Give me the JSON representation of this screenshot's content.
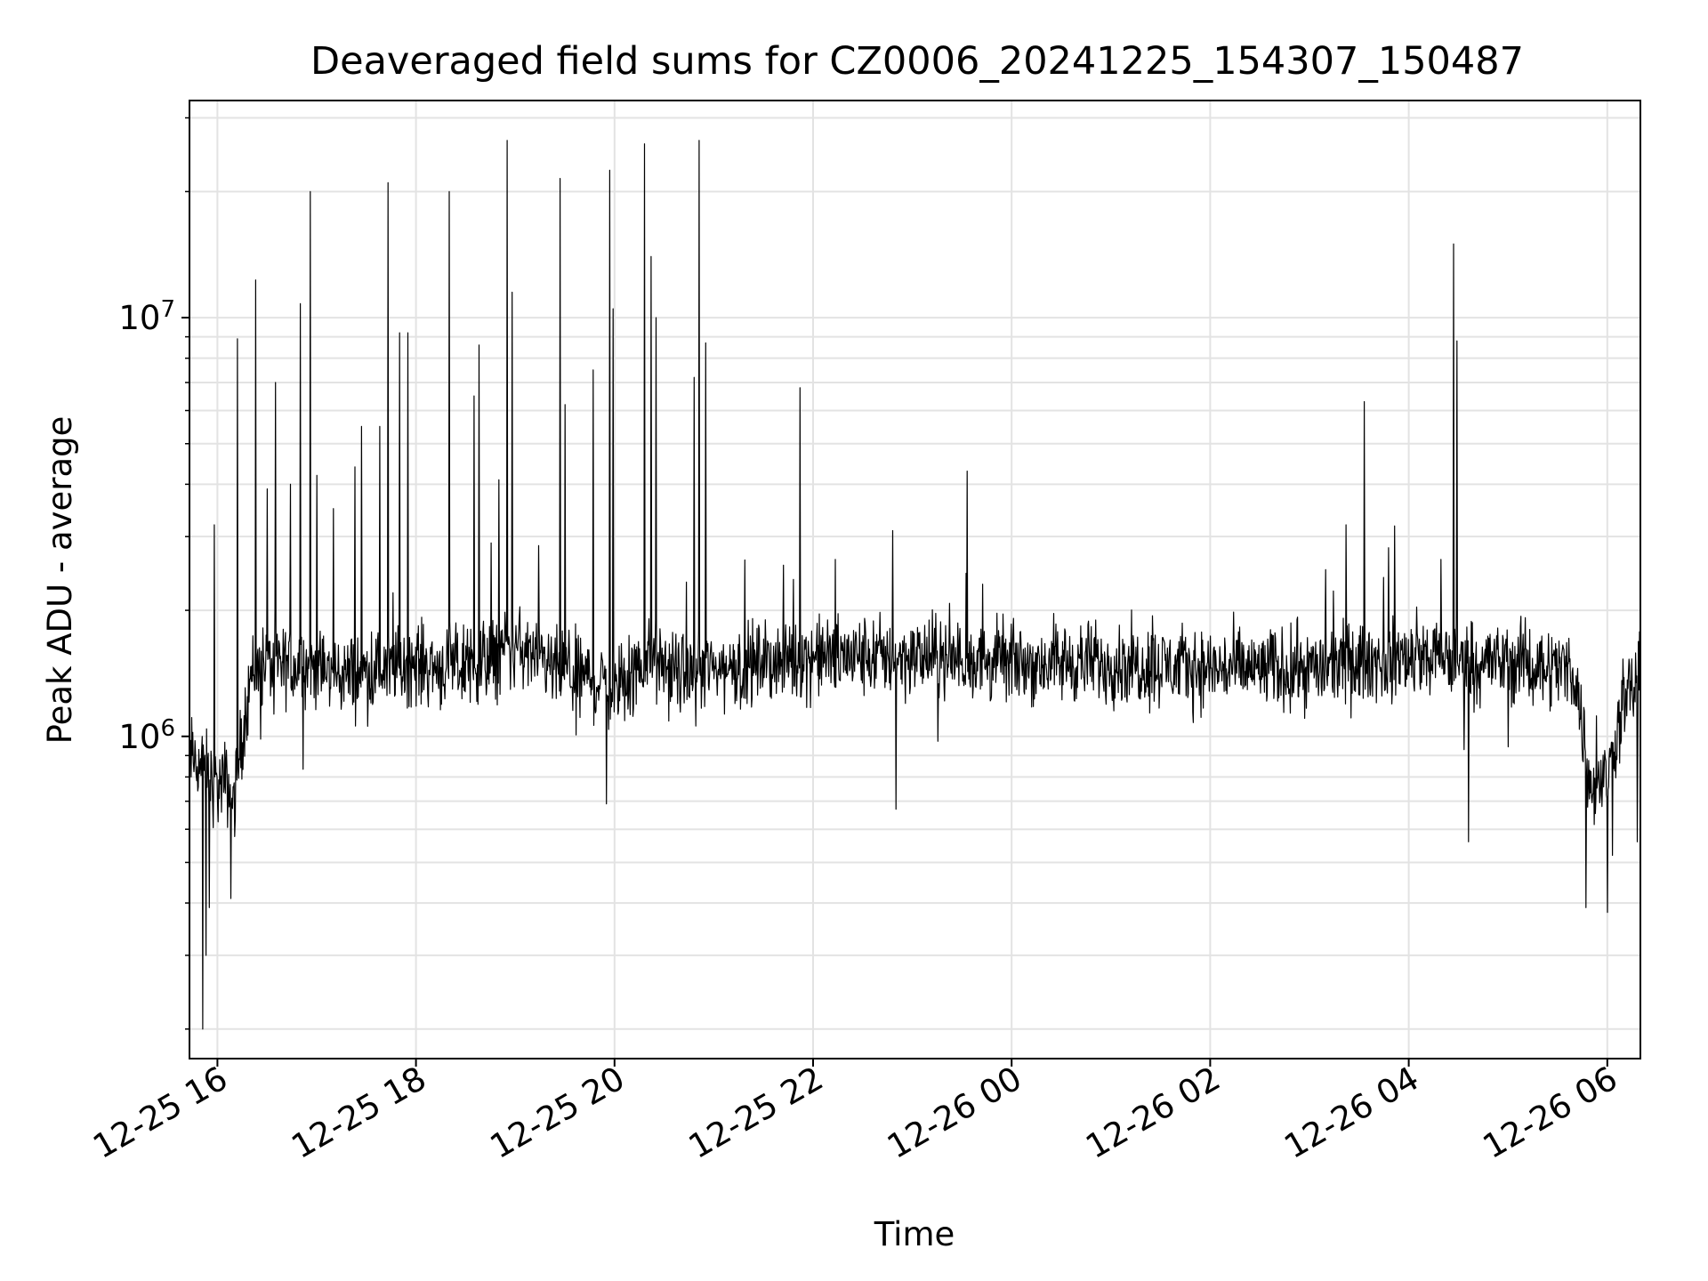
{
  "chart_data": {
    "type": "line",
    "title": "Deaveraged field sums for CZ0006_20241225_154307_150487",
    "xlabel": "Time",
    "ylabel": "Peak ADU - average",
    "yscale": "log",
    "ylim": [
      170000,
      33000000
    ],
    "xlim": [
      "2024-12-25 15:43:07",
      "2024-12-26 06:20:00"
    ],
    "grid": true,
    "line_color": "#000000",
    "x_ticks": [
      "2024-12-25 16:00",
      "2024-12-25 18:00",
      "2024-12-25 20:00",
      "2024-12-25 22:00",
      "2024-12-26 00:00",
      "2024-12-26 02:00",
      "2024-12-26 04:00",
      "2024-12-26 06:00"
    ],
    "x_tick_labels": [
      "12-25 16",
      "12-25 18",
      "12-25 20",
      "12-25 22",
      "12-26 00",
      "12-26 02",
      "12-26 04",
      "12-26 06"
    ],
    "y_major_ticks": [
      1000000,
      10000000
    ],
    "y_tick_labels": [
      {
        "base": "10",
        "exp": "6"
      },
      {
        "base": "10",
        "exp": "7"
      }
    ],
    "series": [
      {
        "x": [
          "2024-12-25 15:43",
          "2024-12-25 15:50",
          "2024-12-25 15:55",
          "2024-12-25 16:00",
          "2024-12-25 16:05",
          "2024-12-25 16:10",
          "2024-12-25 16:15",
          "2024-12-25 16:20",
          "2024-12-25 16:30",
          "2024-12-25 16:40",
          "2024-12-25 16:50",
          "2024-12-25 17:00",
          "2024-12-25 17:20",
          "2024-12-25 17:40",
          "2024-12-25 18:00",
          "2024-12-25 18:20",
          "2024-12-25 18:40",
          "2024-12-25 19:00",
          "2024-12-25 19:20",
          "2024-12-25 19:40",
          "2024-12-25 19:50",
          "2024-12-25 20:00",
          "2024-12-25 20:10",
          "2024-12-25 20:20",
          "2024-12-25 20:30",
          "2024-12-25 20:40",
          "2024-12-25 21:00",
          "2024-12-25 22:00",
          "2024-12-25 23:00",
          "2024-12-26 00:00",
          "2024-12-26 01:00",
          "2024-12-26 02:00",
          "2024-12-26 03:00",
          "2024-12-26 04:00",
          "2024-12-26 05:00",
          "2024-12-26 05:40",
          "2024-12-26 05:50",
          "2024-12-26 06:00",
          "2024-12-26 06:10",
          "2024-12-26 06:20"
        ],
        "values": [
          900000,
          850000,
          800000,
          750000,
          780000,
          700000,
          1000000,
          1400000,
          1500000,
          1450000,
          1500000,
          1450000,
          1400000,
          1450000,
          1500000,
          1450000,
          1500000,
          1650000,
          1450000,
          1400000,
          1350000,
          1300000,
          1350000,
          1550000,
          1450000,
          1400000,
          1450000,
          1550000,
          1550000,
          1500000,
          1500000,
          1450000,
          1450000,
          1550000,
          1500000,
          1450000,
          750000,
          800000,
          1200000,
          1400000
        ]
      }
    ],
    "spikes": [
      {
        "x": "2024-12-25 15:58",
        "value": 3200000
      },
      {
        "x": "2024-12-25 16:12",
        "value": 8900000
      },
      {
        "x": "2024-12-25 16:23",
        "value": 12300000
      },
      {
        "x": "2024-12-25 16:30",
        "value": 3900000
      },
      {
        "x": "2024-12-25 16:35",
        "value": 7000000
      },
      {
        "x": "2024-12-25 16:44",
        "value": 4000000
      },
      {
        "x": "2024-12-25 16:50",
        "value": 10800000
      },
      {
        "x": "2024-12-25 16:56",
        "value": 20000000
      },
      {
        "x": "2024-12-25 17:00",
        "value": 4200000
      },
      {
        "x": "2024-12-25 17:10",
        "value": 3500000
      },
      {
        "x": "2024-12-25 17:23",
        "value": 4400000
      },
      {
        "x": "2024-12-25 17:27",
        "value": 5500000
      },
      {
        "x": "2024-12-25 17:38",
        "value": 5500000
      },
      {
        "x": "2024-12-25 17:43",
        "value": 21000000
      },
      {
        "x": "2024-12-25 17:50",
        "value": 9200000
      },
      {
        "x": "2024-12-25 17:55",
        "value": 9200000
      },
      {
        "x": "2024-12-25 18:20",
        "value": 20000000
      },
      {
        "x": "2024-12-25 18:35",
        "value": 6500000
      },
      {
        "x": "2024-12-25 18:38",
        "value": 8600000
      },
      {
        "x": "2024-12-25 18:50",
        "value": 4100000
      },
      {
        "x": "2024-12-25 18:55",
        "value": 26500000
      },
      {
        "x": "2024-12-25 18:58",
        "value": 11500000
      },
      {
        "x": "2024-12-25 19:27",
        "value": 21500000
      },
      {
        "x": "2024-12-25 19:30",
        "value": 6200000
      },
      {
        "x": "2024-12-25 19:47",
        "value": 7500000
      },
      {
        "x": "2024-12-25 19:57",
        "value": 22500000
      },
      {
        "x": "2024-12-25 19:59",
        "value": 10500000
      },
      {
        "x": "2024-12-25 20:18",
        "value": 26000000
      },
      {
        "x": "2024-12-25 20:22",
        "value": 14000000
      },
      {
        "x": "2024-12-25 20:25",
        "value": 10000000
      },
      {
        "x": "2024-12-25 20:48",
        "value": 7200000
      },
      {
        "x": "2024-12-25 20:51",
        "value": 26500000
      },
      {
        "x": "2024-12-25 20:55",
        "value": 8700000
      },
      {
        "x": "2024-12-25 21:52",
        "value": 6800000
      },
      {
        "x": "2024-12-25 22:48",
        "value": 3100000
      },
      {
        "x": "2024-12-25 23:33",
        "value": 4300000
      },
      {
        "x": "2024-12-26 03:22",
        "value": 3200000
      },
      {
        "x": "2024-12-26 03:33",
        "value": 6300000
      },
      {
        "x": "2024-12-26 04:27",
        "value": 15000000
      },
      {
        "x": "2024-12-26 04:29",
        "value": 8800000
      }
    ],
    "dips": [
      {
        "x": "2024-12-25 15:51",
        "value": 200000
      },
      {
        "x": "2024-12-25 15:53",
        "value": 300000
      },
      {
        "x": "2024-12-25 15:55",
        "value": 390000
      },
      {
        "x": "2024-12-25 16:08",
        "value": 410000
      },
      {
        "x": "2024-12-25 19:55",
        "value": 690000
      },
      {
        "x": "2024-12-25 22:50",
        "value": 670000
      },
      {
        "x": "2024-12-26 04:36",
        "value": 560000
      },
      {
        "x": "2024-12-26 05:47",
        "value": 390000
      },
      {
        "x": "2024-12-26 06:00",
        "value": 380000
      },
      {
        "x": "2024-12-26 06:18",
        "value": 560000
      }
    ]
  }
}
